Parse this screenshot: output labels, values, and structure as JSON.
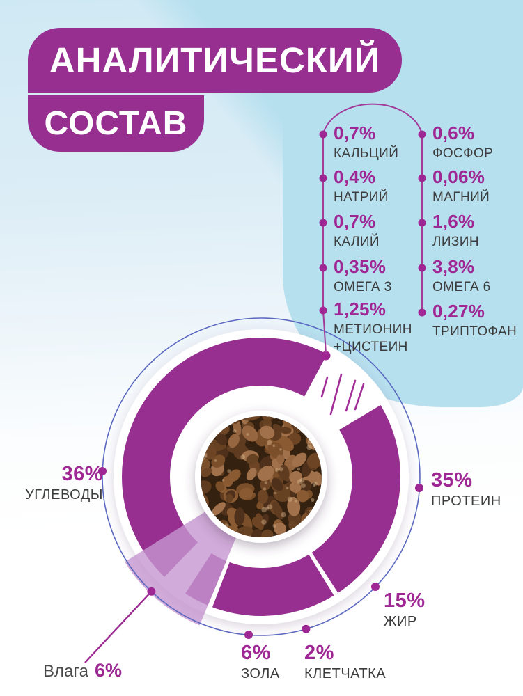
{
  "title": {
    "line1": "АНАЛИТИЧЕСКИЙ",
    "line2": "СОСТАВ"
  },
  "nutrients": {
    "left": [
      {
        "value": "0,7%",
        "label": "КАЛЬЦИЙ"
      },
      {
        "value": "0,4%",
        "label": "НАТРИЙ"
      },
      {
        "value": "0,7%",
        "label": "КАЛИЙ"
      },
      {
        "value": "0,35%",
        "label": "ОМЕГА 3"
      },
      {
        "value": "1,25%",
        "label": "МЕТИОНИН +ЦИСТЕИН"
      }
    ],
    "right": [
      {
        "value": "0,6%",
        "label": "ФОСФОР"
      },
      {
        "value": "0,06%",
        "label": "МАГНИЙ"
      },
      {
        "value": "1,6%",
        "label": "ЛИЗИН"
      },
      {
        "value": "3,8%",
        "label": "ОМЕГА 6"
      },
      {
        "value": "0,27%",
        "label": "ТРИПТОФАН"
      }
    ]
  },
  "chart_data": {
    "type": "donut",
    "title": "АНАЛИТИЧЕСКИЙ СОСТАВ",
    "segments": [
      {
        "label": "ПРОТЕИН",
        "value": 35,
        "value_text": "35%"
      },
      {
        "label": "ЖИР",
        "value": 15,
        "value_text": "15%"
      },
      {
        "label": "КЛЕТЧАТКА",
        "value": 2,
        "value_text": "2%"
      },
      {
        "label": "ЗОЛА",
        "value": 6,
        "value_text": "6%"
      },
      {
        "label": "Влага",
        "value": 6,
        "value_text": "6%"
      },
      {
        "label": "УГЛЕВОДЫ",
        "value": 36,
        "value_text": "36%"
      }
    ],
    "legend_position": "around",
    "center": "kibble photo",
    "notes": "stylized ring with decorative gap and rays at top right; moisture drawn as translucent lavender wedge"
  },
  "colors": {
    "purple": "#962f90",
    "accent_text": "#9e2794",
    "label_text": "#3d3d3d",
    "outer_circle": "#5b68c0",
    "lavender": "rgba(197,150,208,0.8)",
    "bg_blue": "#b7e0ef"
  }
}
